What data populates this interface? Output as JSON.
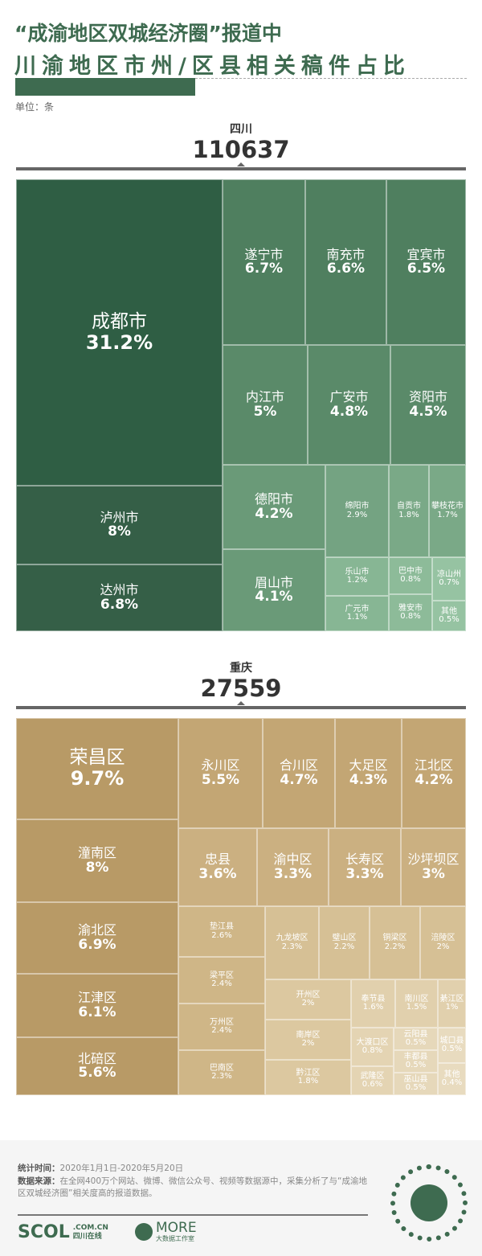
{
  "title": {
    "line1": "“成渝地区双城经济圈”报道中",
    "line2": "川渝地区市州/区县相关稿件占比",
    "unit": "单位：条"
  },
  "chart_data": {
    "type": "treemap",
    "unit": "条",
    "regions": [
      {
        "name": "四川",
        "total": "110637",
        "cells": [
          {
            "name": "成都市",
            "pct": "31.2%"
          },
          {
            "name": "泸州市",
            "pct": "8%"
          },
          {
            "name": "达州市",
            "pct": "6.8%"
          },
          {
            "name": "遂宁市",
            "pct": "6.7%"
          },
          {
            "name": "南充市",
            "pct": "6.6%"
          },
          {
            "name": "宜宾市",
            "pct": "6.5%"
          },
          {
            "name": "内江市",
            "pct": "5%"
          },
          {
            "name": "广安市",
            "pct": "4.8%"
          },
          {
            "name": "资阳市",
            "pct": "4.5%"
          },
          {
            "name": "德阳市",
            "pct": "4.2%"
          },
          {
            "name": "眉山市",
            "pct": "4.1%"
          },
          {
            "name": "绵阳市",
            "pct": "2.9%"
          },
          {
            "name": "自贡市",
            "pct": "1.8%"
          },
          {
            "name": "攀枝花市",
            "pct": "1.7%"
          },
          {
            "name": "乐山市",
            "pct": "1.2%"
          },
          {
            "name": "广元市",
            "pct": "1.1%"
          },
          {
            "name": "巴中市",
            "pct": "0.8%"
          },
          {
            "name": "雅安市",
            "pct": "0.8%"
          },
          {
            "name": "凉山州",
            "pct": "0.7%"
          },
          {
            "name": "其他",
            "pct": "0.5%"
          }
        ]
      },
      {
        "name": "重庆",
        "total": "27559",
        "cells": [
          {
            "name": "荣昌区",
            "pct": "9.7%"
          },
          {
            "name": "潼南区",
            "pct": "8%"
          },
          {
            "name": "渝北区",
            "pct": "6.9%"
          },
          {
            "name": "江津区",
            "pct": "6.1%"
          },
          {
            "name": "北碚区",
            "pct": "5.6%"
          },
          {
            "name": "永川区",
            "pct": "5.5%"
          },
          {
            "name": "合川区",
            "pct": "4.7%"
          },
          {
            "name": "大足区",
            "pct": "4.3%"
          },
          {
            "name": "江北区",
            "pct": "4.2%"
          },
          {
            "name": "忠县",
            "pct": "3.6%"
          },
          {
            "name": "渝中区",
            "pct": "3.3%"
          },
          {
            "name": "长寿区",
            "pct": "3.3%"
          },
          {
            "name": "沙坪坝区",
            "pct": "3%"
          },
          {
            "name": "垫江县",
            "pct": "2.6%"
          },
          {
            "name": "梁平区",
            "pct": "2.4%"
          },
          {
            "name": "万州区",
            "pct": "2.4%"
          },
          {
            "name": "巴南区",
            "pct": "2.3%"
          },
          {
            "name": "九龙坡区",
            "pct": "2.3%"
          },
          {
            "name": "璧山区",
            "pct": "2.2%"
          },
          {
            "name": "铜梁区",
            "pct": "2.2%"
          },
          {
            "name": "涪陵区",
            "pct": "2%"
          },
          {
            "name": "开州区",
            "pct": "2%"
          },
          {
            "name": "南岸区",
            "pct": "2%"
          },
          {
            "name": "黔江区",
            "pct": "1.8%"
          },
          {
            "name": "奉节县",
            "pct": "1.6%"
          },
          {
            "name": "南川区",
            "pct": "1.5%"
          },
          {
            "name": "綦江区",
            "pct": "1%"
          },
          {
            "name": "大渡口区",
            "pct": "0.8%"
          },
          {
            "name": "武隆区",
            "pct": "0.6%"
          },
          {
            "name": "云阳县",
            "pct": "0.5%"
          },
          {
            "name": "丰都县",
            "pct": "0.5%"
          },
          {
            "name": "巫山县",
            "pct": "0.5%"
          },
          {
            "name": "城口县",
            "pct": "0.5%"
          },
          {
            "name": "其他",
            "pct": "0.4%"
          }
        ]
      }
    ]
  },
  "footer": {
    "time_label": "统计时间：",
    "time_value": "2020年1月1日-2020年5月20日",
    "source_label": "数据来源：",
    "source_value": "在全网400万个网站、微博、微信公众号、视频等数据源中，采集分析了与“成渝地区双城经济圈”相关度高的报道数据。",
    "logo1": "SCOL",
    "logo1_sub1": ".COM.CN",
    "logo1_sub2": "四川在线",
    "logo2": "MORE",
    "logo2_sub": "大数据工作室"
  }
}
